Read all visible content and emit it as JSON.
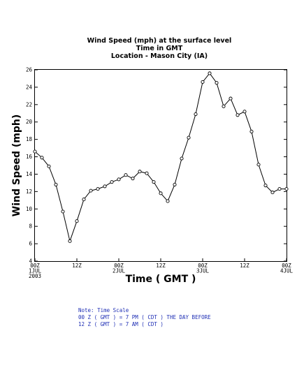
{
  "chart_data": {
    "type": "line",
    "title_lines": [
      "Wind Speed (mph) at the surface level",
      "Time in GMT",
      "Location - Mason City (IA)"
    ],
    "xlabel": "Time ( GMT )",
    "ylabel": "Wind Speed (mph)",
    "xlim": [
      0,
      72
    ],
    "ylim": [
      4,
      26
    ],
    "y_ticks": [
      4,
      6,
      8,
      10,
      12,
      14,
      16,
      18,
      20,
      22,
      24,
      26
    ],
    "x_ticks": [
      {
        "x": 0,
        "lines": [
          "00Z",
          "1JUL",
          "2003"
        ]
      },
      {
        "x": 12,
        "lines": [
          "12Z"
        ]
      },
      {
        "x": 24,
        "lines": [
          "00Z",
          "2JUL"
        ]
      },
      {
        "x": 36,
        "lines": [
          "12Z"
        ]
      },
      {
        "x": 48,
        "lines": [
          "00Z",
          "3JUL"
        ]
      },
      {
        "x": 60,
        "lines": [
          "12Z"
        ]
      },
      {
        "x": 72,
        "lines": [
          "00Z",
          "4JUL"
        ]
      }
    ],
    "grid": false,
    "series": [
      {
        "x": [
          0,
          2,
          4,
          6,
          8,
          10,
          12,
          14,
          16,
          18,
          20,
          22,
          24,
          26,
          28,
          30,
          32,
          34,
          36,
          38,
          40,
          42,
          44,
          46,
          48,
          50,
          52,
          54,
          56,
          58,
          60,
          62,
          64,
          66,
          68,
          70,
          72
        ],
        "values": [
          16.6,
          15.9,
          14.9,
          12.8,
          9.7,
          6.3,
          8.6,
          11.1,
          12.1,
          12.3,
          12.6,
          13.1,
          13.4,
          13.9,
          13.5,
          14.3,
          14.1,
          13.1,
          11.8,
          10.9,
          12.8,
          15.8,
          18.2,
          20.9,
          24.6,
          25.6,
          24.5,
          21.8,
          22.7,
          20.8,
          21.2,
          18.9,
          15.1,
          12.7,
          11.9,
          12.3,
          12.3
        ]
      }
    ]
  },
  "notes": [
    "Note: Time Scale",
    "00 Z ( GMT ) = 7 PM ( CDT ) THE DAY BEFORE",
    "12 Z ( GMT ) = 7 AM ( CDT )"
  ]
}
